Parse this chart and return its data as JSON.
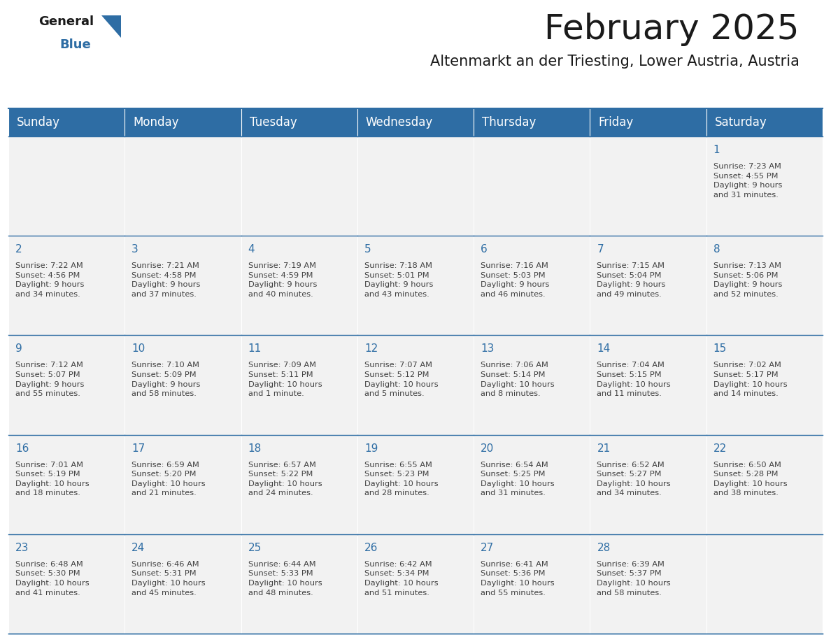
{
  "title": "February 2025",
  "subtitle": "Altenmarkt an der Triesting, Lower Austria, Austria",
  "header_bg": "#2E6DA4",
  "header_text": "#FFFFFF",
  "cell_bg": "#F2F2F2",
  "day_number_color": "#2E6DA4",
  "info_text_color": "#404040",
  "border_color": "#2E6DA4",
  "days_of_week": [
    "Sunday",
    "Monday",
    "Tuesday",
    "Wednesday",
    "Thursday",
    "Friday",
    "Saturday"
  ],
  "weeks": [
    [
      {
        "day": null,
        "info": null
      },
      {
        "day": null,
        "info": null
      },
      {
        "day": null,
        "info": null
      },
      {
        "day": null,
        "info": null
      },
      {
        "day": null,
        "info": null
      },
      {
        "day": null,
        "info": null
      },
      {
        "day": 1,
        "info": "Sunrise: 7:23 AM\nSunset: 4:55 PM\nDaylight: 9 hours\nand 31 minutes."
      }
    ],
    [
      {
        "day": 2,
        "info": "Sunrise: 7:22 AM\nSunset: 4:56 PM\nDaylight: 9 hours\nand 34 minutes."
      },
      {
        "day": 3,
        "info": "Sunrise: 7:21 AM\nSunset: 4:58 PM\nDaylight: 9 hours\nand 37 minutes."
      },
      {
        "day": 4,
        "info": "Sunrise: 7:19 AM\nSunset: 4:59 PM\nDaylight: 9 hours\nand 40 minutes."
      },
      {
        "day": 5,
        "info": "Sunrise: 7:18 AM\nSunset: 5:01 PM\nDaylight: 9 hours\nand 43 minutes."
      },
      {
        "day": 6,
        "info": "Sunrise: 7:16 AM\nSunset: 5:03 PM\nDaylight: 9 hours\nand 46 minutes."
      },
      {
        "day": 7,
        "info": "Sunrise: 7:15 AM\nSunset: 5:04 PM\nDaylight: 9 hours\nand 49 minutes."
      },
      {
        "day": 8,
        "info": "Sunrise: 7:13 AM\nSunset: 5:06 PM\nDaylight: 9 hours\nand 52 minutes."
      }
    ],
    [
      {
        "day": 9,
        "info": "Sunrise: 7:12 AM\nSunset: 5:07 PM\nDaylight: 9 hours\nand 55 minutes."
      },
      {
        "day": 10,
        "info": "Sunrise: 7:10 AM\nSunset: 5:09 PM\nDaylight: 9 hours\nand 58 minutes."
      },
      {
        "day": 11,
        "info": "Sunrise: 7:09 AM\nSunset: 5:11 PM\nDaylight: 10 hours\nand 1 minute."
      },
      {
        "day": 12,
        "info": "Sunrise: 7:07 AM\nSunset: 5:12 PM\nDaylight: 10 hours\nand 5 minutes."
      },
      {
        "day": 13,
        "info": "Sunrise: 7:06 AM\nSunset: 5:14 PM\nDaylight: 10 hours\nand 8 minutes."
      },
      {
        "day": 14,
        "info": "Sunrise: 7:04 AM\nSunset: 5:15 PM\nDaylight: 10 hours\nand 11 minutes."
      },
      {
        "day": 15,
        "info": "Sunrise: 7:02 AM\nSunset: 5:17 PM\nDaylight: 10 hours\nand 14 minutes."
      }
    ],
    [
      {
        "day": 16,
        "info": "Sunrise: 7:01 AM\nSunset: 5:19 PM\nDaylight: 10 hours\nand 18 minutes."
      },
      {
        "day": 17,
        "info": "Sunrise: 6:59 AM\nSunset: 5:20 PM\nDaylight: 10 hours\nand 21 minutes."
      },
      {
        "day": 18,
        "info": "Sunrise: 6:57 AM\nSunset: 5:22 PM\nDaylight: 10 hours\nand 24 minutes."
      },
      {
        "day": 19,
        "info": "Sunrise: 6:55 AM\nSunset: 5:23 PM\nDaylight: 10 hours\nand 28 minutes."
      },
      {
        "day": 20,
        "info": "Sunrise: 6:54 AM\nSunset: 5:25 PM\nDaylight: 10 hours\nand 31 minutes."
      },
      {
        "day": 21,
        "info": "Sunrise: 6:52 AM\nSunset: 5:27 PM\nDaylight: 10 hours\nand 34 minutes."
      },
      {
        "day": 22,
        "info": "Sunrise: 6:50 AM\nSunset: 5:28 PM\nDaylight: 10 hours\nand 38 minutes."
      }
    ],
    [
      {
        "day": 23,
        "info": "Sunrise: 6:48 AM\nSunset: 5:30 PM\nDaylight: 10 hours\nand 41 minutes."
      },
      {
        "day": 24,
        "info": "Sunrise: 6:46 AM\nSunset: 5:31 PM\nDaylight: 10 hours\nand 45 minutes."
      },
      {
        "day": 25,
        "info": "Sunrise: 6:44 AM\nSunset: 5:33 PM\nDaylight: 10 hours\nand 48 minutes."
      },
      {
        "day": 26,
        "info": "Sunrise: 6:42 AM\nSunset: 5:34 PM\nDaylight: 10 hours\nand 51 minutes."
      },
      {
        "day": 27,
        "info": "Sunrise: 6:41 AM\nSunset: 5:36 PM\nDaylight: 10 hours\nand 55 minutes."
      },
      {
        "day": 28,
        "info": "Sunrise: 6:39 AM\nSunset: 5:37 PM\nDaylight: 10 hours\nand 58 minutes."
      },
      {
        "day": null,
        "info": null
      }
    ]
  ],
  "title_fontsize": 36,
  "subtitle_fontsize": 15,
  "header_fontsize": 12,
  "day_num_fontsize": 11,
  "info_fontsize": 8.2,
  "logo_general_fontsize": 13,
  "logo_blue_fontsize": 13
}
